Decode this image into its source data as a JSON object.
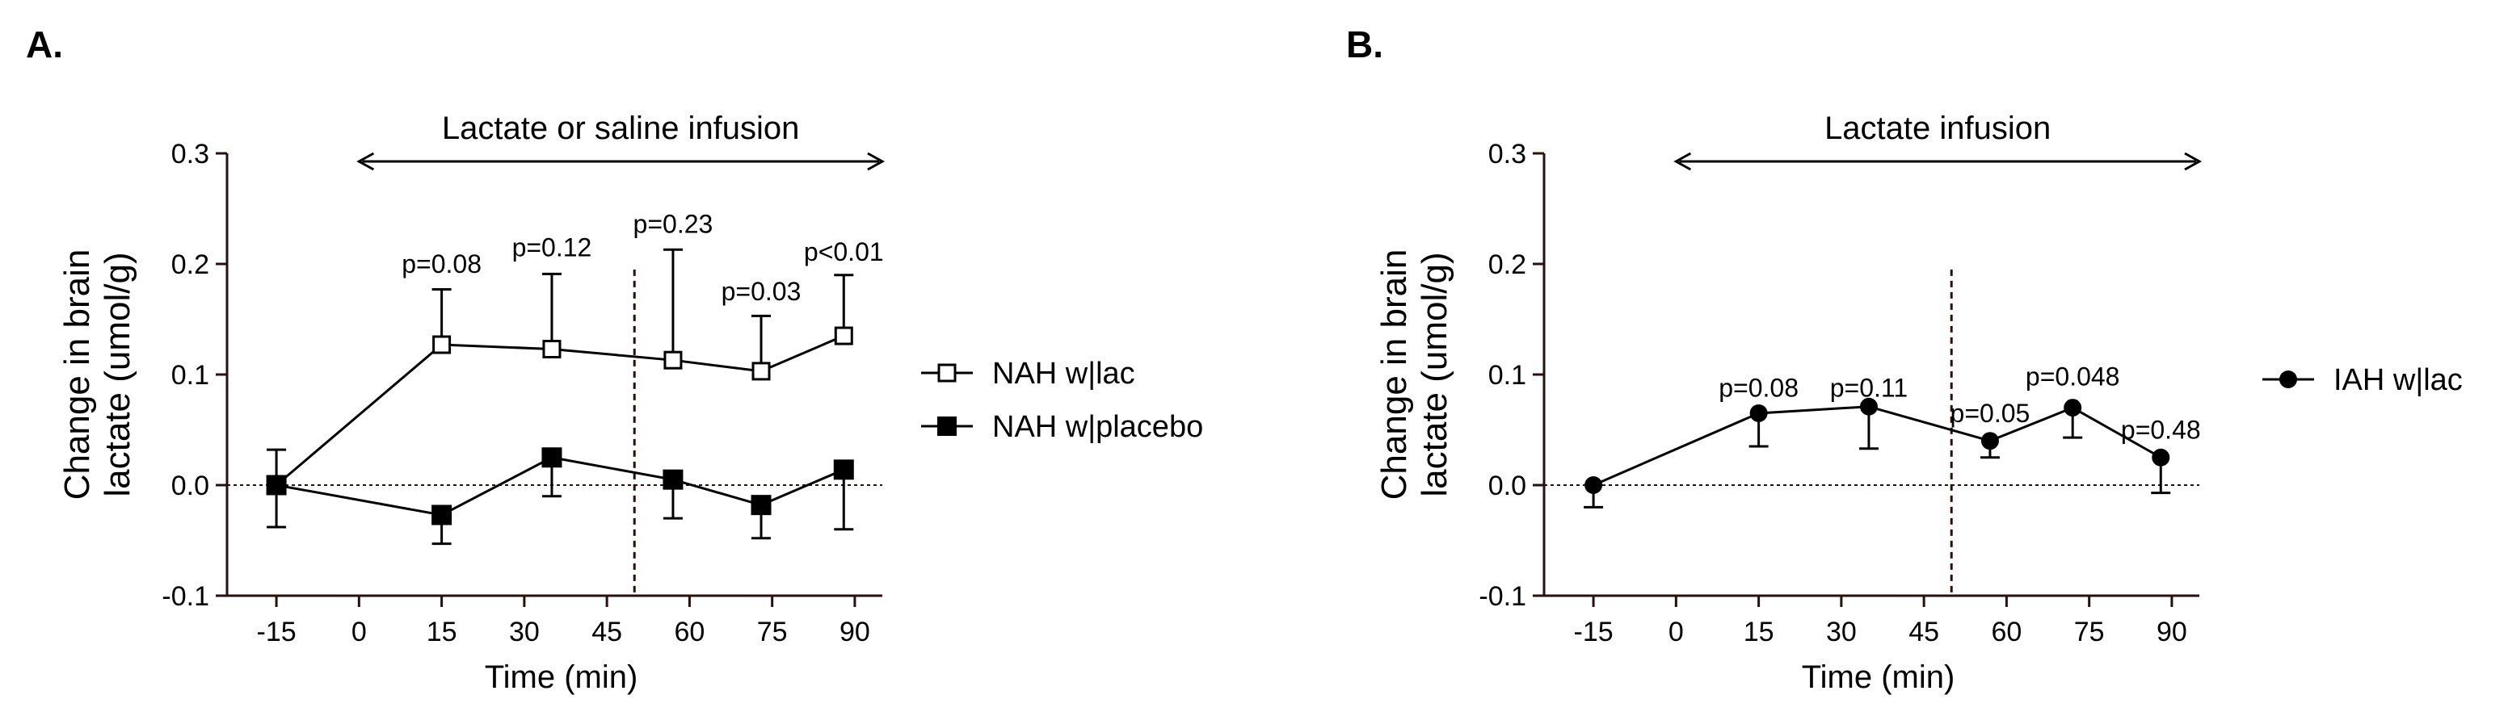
{
  "panels": [
    {
      "letter": "A.",
      "infusion_label": "Lactate or saline infusion",
      "xlabel": "Time (min)",
      "ylabel_line1": "Change in brain",
      "ylabel_line2": "lactate (umol/g)",
      "xticks": [
        "-15",
        "0",
        "15",
        "30",
        "45",
        "60",
        "75",
        "90"
      ],
      "yticks": [
        "-0.1",
        "0.0",
        "0.1",
        "0.2",
        "0.3"
      ],
      "ylim": [
        -0.1,
        0.3
      ],
      "xlim": [
        -20,
        95
      ],
      "infusion_range": [
        0,
        95
      ],
      "dashed_vline_x": 50,
      "legend_position": "right",
      "series": [
        {
          "name": "NAH w|lac",
          "marker": "open-square",
          "x": [
            -15,
            15,
            35,
            57,
            73,
            88
          ],
          "y": [
            0.0,
            0.127,
            0.123,
            0.113,
            0.103,
            0.135
          ],
          "err_up": [
            0.0,
            0.05,
            0.068,
            0.1,
            0.05,
            0.055
          ],
          "err_down": [
            0.0,
            0.0,
            0.0,
            0.0,
            0.0,
            0.0
          ]
        },
        {
          "name": "NAH w|placebo",
          "marker": "filled-square",
          "x": [
            -15,
            15,
            35,
            57,
            73,
            88
          ],
          "y": [
            0.0,
            -0.027,
            0.025,
            0.005,
            -0.018,
            0.014
          ],
          "err_up": [
            0.032,
            0.0,
            0.0,
            0.0,
            0.0,
            0.0
          ],
          "err_down": [
            0.038,
            0.026,
            0.035,
            0.035,
            0.03,
            0.054
          ]
        }
      ],
      "annotations": [
        {
          "text": "p=0.08",
          "x": 15,
          "y": 0.192
        },
        {
          "text": "p=0.12",
          "x": 35,
          "y": 0.207
        },
        {
          "text": "p=0.23",
          "x": 57,
          "y": 0.228
        },
        {
          "text": "p=0.03",
          "x": 73,
          "y": 0.167
        },
        {
          "text": "p<0.01",
          "x": 88,
          "y": 0.203
        }
      ]
    },
    {
      "letter": "B.",
      "infusion_label": "Lactate infusion",
      "xlabel": "Time (min)",
      "ylabel_line1": "Change in brain",
      "ylabel_line2": "lactate (umol/g)",
      "xticks": [
        "-15",
        "0",
        "15",
        "30",
        "45",
        "60",
        "75",
        "90"
      ],
      "yticks": [
        "-0.1",
        "0.0",
        "0.1",
        "0.2",
        "0.3"
      ],
      "ylim": [
        -0.1,
        0.3
      ],
      "xlim": [
        -20,
        95
      ],
      "infusion_range": [
        0,
        95
      ],
      "dashed_vline_x": 50,
      "legend_position": "right",
      "series": [
        {
          "name": "IAH w|lac",
          "marker": "filled-circle",
          "x": [
            -15,
            15,
            35,
            57,
            72,
            88
          ],
          "y": [
            0.0,
            0.065,
            0.071,
            0.04,
            0.07,
            0.025
          ],
          "err_up": [
            0.0,
            0.0,
            0.0,
            0.0,
            0.0,
            0.0
          ],
          "err_down": [
            0.02,
            0.03,
            0.038,
            0.015,
            0.027,
            0.032
          ]
        }
      ],
      "annotations": [
        {
          "text": "p=0.08",
          "x": 15,
          "y": 0.08
        },
        {
          "text": "p=0.11",
          "x": 35,
          "y": 0.08
        },
        {
          "text": "p=0.05",
          "x": 57,
          "y": 0.057
        },
        {
          "text": "p=0.048",
          "x": 72,
          "y": 0.09
        },
        {
          "text": "p=0.48",
          "x": 88,
          "y": 0.042
        }
      ]
    }
  ],
  "chart_data": [
    {
      "type": "line",
      "title": "",
      "xlabel": "Time (min)",
      "ylabel": "Change in brain lactate (umol/g)",
      "ylim": [
        -0.1,
        0.3
      ],
      "grid": false,
      "series": [
        {
          "name": "NAH w|lac",
          "x": [
            -15,
            15,
            35,
            57,
            73,
            88
          ],
          "values": [
            0.0,
            0.127,
            0.123,
            0.113,
            0.103,
            0.135
          ]
        },
        {
          "name": "NAH w|placebo",
          "x": [
            -15,
            15,
            35,
            57,
            73,
            88
          ],
          "values": [
            0.0,
            -0.027,
            0.025,
            0.005,
            -0.018,
            0.014
          ]
        }
      ]
    },
    {
      "type": "line",
      "title": "",
      "xlabel": "Time (min)",
      "ylabel": "Change in brain lactate (umol/g)",
      "ylim": [
        -0.1,
        0.3
      ],
      "grid": false,
      "series": [
        {
          "name": "IAH w|lac",
          "x": [
            -15,
            15,
            35,
            57,
            72,
            88
          ],
          "values": [
            0.0,
            0.065,
            0.071,
            0.04,
            0.07,
            0.025
          ]
        }
      ]
    }
  ]
}
